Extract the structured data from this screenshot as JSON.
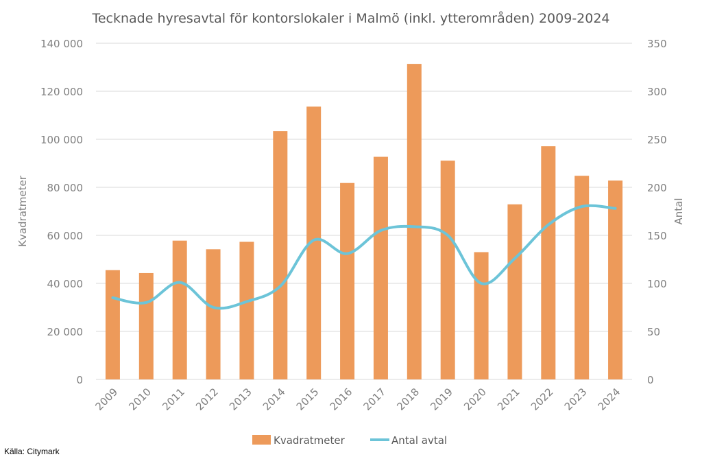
{
  "chart_data": {
    "type": "bar",
    "title": "Tecknade hyresavtal för kontorslokaler i Malmö (inkl. ytterområden) 2009-2024",
    "categories": [
      "2009",
      "2010",
      "2011",
      "2012",
      "2013",
      "2014",
      "2015",
      "2016",
      "2017",
      "2018",
      "2019",
      "2020",
      "2021",
      "2022",
      "2023",
      "2024"
    ],
    "series": [
      {
        "name": "Kvadratmeter",
        "type": "bar",
        "axis": "left",
        "color": "#ED9A5A",
        "values": [
          45500,
          44300,
          57800,
          54200,
          57300,
          103400,
          113600,
          81800,
          92700,
          131400,
          91100,
          53000,
          72900,
          97100,
          84800,
          82800
        ]
      },
      {
        "name": "Antal avtal",
        "type": "line",
        "axis": "right",
        "color": "#6CC4D8",
        "values": [
          85,
          80,
          101,
          75,
          81,
          97,
          145,
          131,
          155,
          159,
          150,
          100,
          126,
          161,
          180,
          178
        ]
      }
    ],
    "ylabel": "Kvadratmeter",
    "y2label": "Antal",
    "ylim": [
      0,
      140000
    ],
    "y2lim": [
      0,
      350
    ],
    "yticks": [
      "0",
      "20 000",
      "40 000",
      "60 000",
      "80 000",
      "100 000",
      "120 000",
      "140 000"
    ],
    "y2ticks": [
      "0",
      "50",
      "100",
      "150",
      "200",
      "250",
      "300",
      "350"
    ],
    "grid": true,
    "legend": "bottom"
  },
  "source": "Källa: Citymark"
}
